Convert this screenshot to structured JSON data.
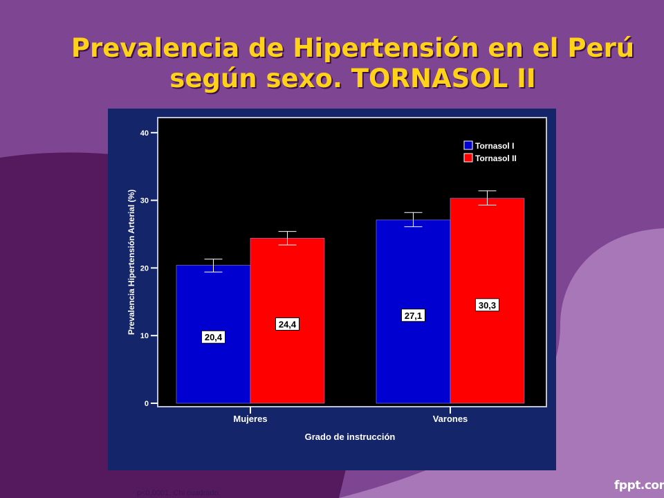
{
  "slide": {
    "title_line1": "Prevalencia de Hipertensión en el Perú",
    "title_line2": "según sexo. TORNASOL II",
    "footnote": "p<0,0001, Chi cuadrado.",
    "watermark": "fppt.com"
  },
  "colors": {
    "background": "#7e4593",
    "title": "#ffd21a",
    "panel": "#14256a",
    "plot": "#000000",
    "tornasol_i": "#0000d0",
    "tornasol_ii": "#ff0000"
  },
  "chart_data": {
    "type": "bar",
    "title": "",
    "xlabel": "Grado de instrucción",
    "ylabel": "Prevalencia Hipertensión Arterial (%)",
    "categories": [
      "Mujeres",
      "Varones"
    ],
    "ylim": [
      0,
      40
    ],
    "yticks": [
      0,
      10,
      20,
      30,
      40
    ],
    "grid": false,
    "legend_position": "top-right",
    "error_bars": true,
    "series": [
      {
        "name": "Tornasol I",
        "color": "#0000d0",
        "values": [
          20.4,
          27.1
        ],
        "labels": [
          "20,4",
          "27,1"
        ],
        "error_low": [
          19.4,
          26.1
        ],
        "error_high": [
          21.3,
          28.2
        ]
      },
      {
        "name": "Tornasol II",
        "color": "#ff0000",
        "values": [
          24.4,
          30.3
        ],
        "labels": [
          "24,4",
          "30,3"
        ],
        "error_low": [
          23.4,
          29.3
        ],
        "error_high": [
          25.4,
          31.4
        ]
      }
    ]
  }
}
